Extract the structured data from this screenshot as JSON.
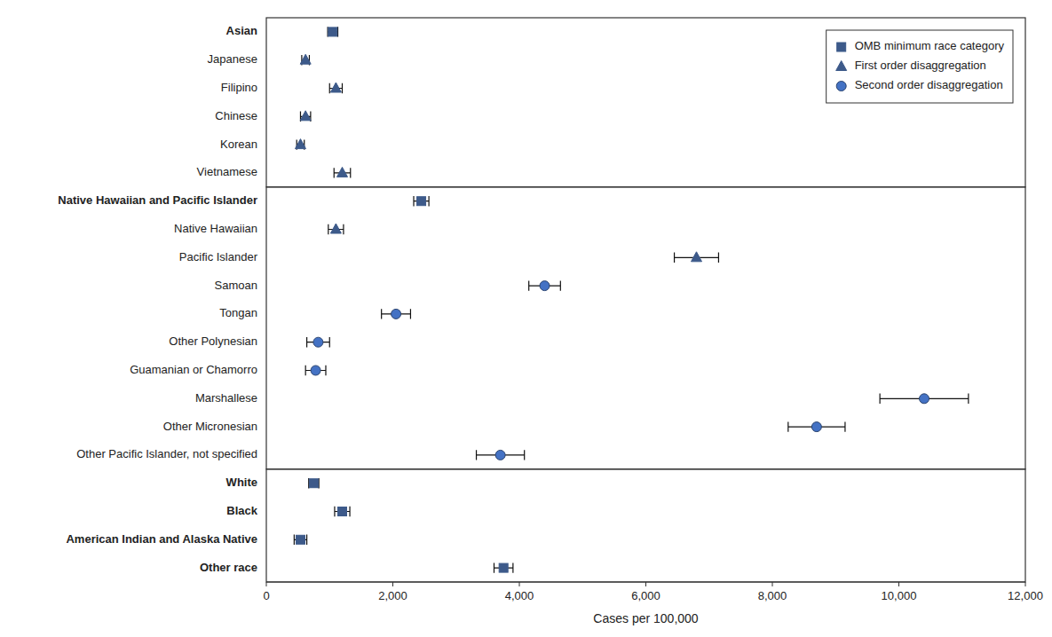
{
  "chart_data": {
    "type": "dot",
    "orientation": "horizontal",
    "categories": [
      "Asian",
      "Japanese",
      "Filipino",
      "Chinese",
      "Korean",
      "Vietnamese",
      "Native Hawaiian and Pacific Islander",
      "Native Hawaiian",
      "Pacific Islander",
      "Samoan",
      "Tongan",
      "Other Polynesian",
      "Guamanian or Chamorro",
      "Marshallese",
      "Other Micronesian",
      "Other Pacific Islander, not specified",
      "White",
      "Black",
      "American Indian and Alaska Native",
      "Other race"
    ],
    "series": [
      {
        "name": "OMB minimum race category",
        "color": "#3d5a8a",
        "marker": "square",
        "values": [
          1050,
          null,
          null,
          null,
          null,
          null,
          2450,
          null,
          null,
          null,
          null,
          null,
          null,
          null,
          null,
          null,
          750,
          1200,
          540,
          3750
        ],
        "error_low": [
          80,
          null,
          null,
          null,
          null,
          null,
          120,
          null,
          null,
          null,
          null,
          null,
          null,
          null,
          null,
          null,
          80,
          120,
          100,
          150
        ],
        "error_high": [
          80,
          null,
          null,
          null,
          null,
          null,
          120,
          null,
          null,
          null,
          null,
          null,
          null,
          null,
          null,
          null,
          80,
          120,
          100,
          150
        ]
      },
      {
        "name": "First order disaggregation",
        "color": "#3d5a8a",
        "marker": "triangle",
        "values": [
          null,
          620,
          1100,
          620,
          540,
          1200,
          null,
          1100,
          6800,
          null,
          null,
          null,
          null,
          null,
          null,
          null,
          null,
          null,
          null,
          null
        ],
        "error_low": [
          null,
          60,
          100,
          80,
          60,
          130,
          null,
          120,
          350,
          null,
          null,
          null,
          null,
          null,
          null,
          null,
          null,
          null,
          null,
          null
        ],
        "error_high": [
          null,
          60,
          100,
          80,
          60,
          130,
          null,
          120,
          350,
          null,
          null,
          null,
          null,
          null,
          null,
          null,
          null,
          null,
          null,
          null
        ]
      },
      {
        "name": "Second order disaggregation",
        "color": "#4472c4",
        "marker": "circle",
        "values": [
          null,
          null,
          null,
          null,
          null,
          null,
          null,
          null,
          null,
          4400,
          2050,
          820,
          780,
          10400,
          8700,
          3700,
          null,
          null,
          null,
          null
        ],
        "error_low": [
          null,
          null,
          null,
          null,
          null,
          null,
          null,
          null,
          null,
          250,
          230,
          180,
          160,
          700,
          450,
          380,
          null,
          null,
          null,
          null
        ],
        "error_high": [
          null,
          null,
          null,
          null,
          null,
          null,
          null,
          null,
          null,
          250,
          230,
          180,
          160,
          700,
          450,
          380,
          null,
          null,
          null,
          null
        ]
      }
    ],
    "xlabel": "Cases per 100,000",
    "xlim": [
      0,
      12000
    ],
    "xticks": [
      0,
      {
        "value": 2000,
        "label": "2,000"
      },
      {
        "value": 4000,
        "label": "4,000"
      },
      {
        "value": 6000,
        "label": "6,000"
      },
      {
        "value": 8000,
        "label": "8,000"
      },
      {
        "value": 10000,
        "label": "10,000"
      },
      {
        "value": 12000,
        "label": "12,000"
      }
    ],
    "grid": false,
    "legend": "upper right"
  }
}
